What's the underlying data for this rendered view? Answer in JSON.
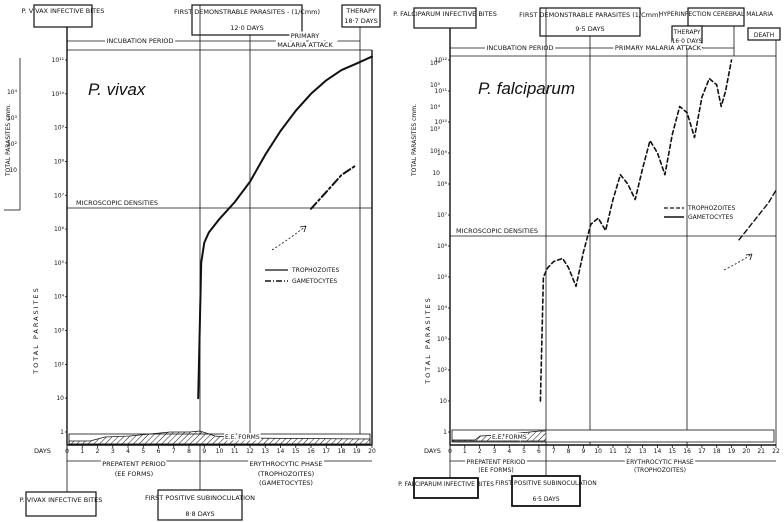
{
  "chart_data": [
    {
      "type": "line",
      "title": "P. vivax",
      "xlabel": "DAYS",
      "ylabel": "TOTAL PARASITES",
      "ylabel_cmm": "TOTAL PARASITES cmm.",
      "xlim": [
        0,
        20
      ],
      "x_ticks": [
        "0",
        "1",
        "2",
        "3",
        "4",
        "5",
        "6",
        "7",
        "8",
        "9",
        "10",
        "11",
        "12",
        "13",
        "14",
        "15",
        "16",
        "17",
        "18",
        "19",
        "20"
      ],
      "y_ticks_left": [
        "1",
        "10",
        "10²",
        "10³",
        "10⁴",
        "10⁵",
        "10⁶",
        "10⁷",
        "10⁸",
        "10⁹",
        "10¹⁰",
        "10¹¹"
      ],
      "y_ticks_cmm": [
        "10",
        "10²",
        "10³",
        "10⁴"
      ],
      "series": [
        {
          "name": "TROPHOZOITES",
          "style": "solid",
          "points": [
            [
              8.6,
              1.0
            ],
            [
              8.8,
              5.0
            ],
            [
              9.0,
              5.6
            ],
            [
              9.3,
              5.9
            ],
            [
              10,
              6.3
            ],
            [
              11,
              6.8
            ],
            [
              12,
              7.4
            ],
            [
              13,
              8.2
            ],
            [
              14,
              8.9
            ],
            [
              15,
              9.5
            ],
            [
              16,
              10.0
            ],
            [
              17,
              10.4
            ],
            [
              18,
              10.7
            ],
            [
              19,
              10.9
            ],
            [
              20,
              11.1
            ]
          ]
        },
        {
          "name": "GAMETOCYTES",
          "style": "dash-dot",
          "points": [
            [
              16,
              6.6
            ],
            [
              17,
              7.1
            ],
            [
              18,
              7.6
            ],
            [
              19,
              7.9
            ]
          ]
        }
      ],
      "annotations": {
        "microscopic_densities": "MICROSCOPIC DENSITIES",
        "ee_forms": "E.E. FORMS",
        "legend": "right-middle",
        "top_labels": {
          "bites": "P. VIVAX INFECTIVE BITES",
          "first_demo": "FIRST DEMONSTRABLE PARASITES - (1/Cmm)",
          "first_demo_days": "12·0 DAYS",
          "therapy": "THERAPY",
          "therapy_days": "18·7 DAYS",
          "incubation": "INCUBATION PERIOD",
          "primary": "PRIMARY",
          "malaria_attack": "MALARIA ATTACK"
        },
        "bottom_labels": {
          "prepatent": "PREPATENT PERIOD",
          "ee_forms_paren": "(EE FORMS)",
          "erythrocytic": "ERYTHROCYTIC PHASE",
          "troph_paren": "(TROPHOZOITES)",
          "gamet_paren": "(GAMETOCYTES)",
          "bites_box": "P. VIVAX INFECTIVE BITES",
          "subinoc": "FIRST POSITIVE SUBINOCULATION",
          "subinoc_days": "8·8 DAYS"
        }
      }
    },
    {
      "type": "line",
      "title": "P. falciparum",
      "xlabel": "DAYS",
      "ylabel": "TOTAL PARASITES",
      "ylabel_cmm": "TOTAL PARASITES cmm.",
      "xlim": [
        0,
        22
      ],
      "x_ticks": [
        "0",
        "1",
        "2",
        "3",
        "4",
        "5",
        "6",
        "7",
        "8",
        "9",
        "10",
        "11",
        "12",
        "13",
        "14",
        "15",
        "16",
        "17",
        "18",
        "19",
        "20",
        "21",
        "22"
      ],
      "y_ticks_left": [
        "1",
        "10",
        "10²",
        "10³",
        "10⁴",
        "10⁵",
        "10⁶",
        "10⁷",
        "10⁸",
        "10⁹",
        "10¹⁰",
        "10¹¹",
        "10¹²"
      ],
      "y_ticks_cmm": [
        "10",
        "10²",
        "10³",
        "10⁴",
        "10⁵",
        "10⁶"
      ],
      "series": [
        {
          "name": "TROPHOZOITES",
          "style": "solid",
          "points": [
            [
              6.1,
              1.0
            ],
            [
              6.3,
              5.0
            ],
            [
              6.6,
              5.3
            ],
            [
              7.0,
              5.5
            ],
            [
              7.6,
              5.6
            ],
            [
              8.0,
              5.3
            ],
            [
              8.5,
              4.7
            ],
            [
              9.0,
              5.8
            ],
            [
              9.5,
              6.7
            ],
            [
              10.0,
              6.9
            ],
            [
              10.5,
              6.5
            ],
            [
              11.0,
              7.5
            ],
            [
              11.5,
              8.3
            ],
            [
              12.0,
              8.0
            ],
            [
              12.5,
              7.5
            ],
            [
              13.0,
              8.5
            ],
            [
              13.5,
              9.4
            ],
            [
              14.0,
              9.0
            ],
            [
              14.5,
              8.3
            ],
            [
              15.0,
              9.6
            ],
            [
              15.5,
              10.5
            ],
            [
              16.0,
              10.3
            ],
            [
              16.5,
              9.5
            ],
            [
              17.0,
              10.8
            ],
            [
              17.5,
              11.4
            ],
            [
              18.0,
              11.2
            ],
            [
              18.3,
              10.5
            ],
            [
              18.6,
              11.0
            ],
            [
              19.0,
              12.0
            ]
          ]
        },
        {
          "name": "GAMETOCYTES",
          "style": "dashed",
          "points": [
            [
              19.5,
              6.2
            ],
            [
              20.5,
              6.8
            ],
            [
              21.5,
              7.4
            ],
            [
              22,
              7.8
            ]
          ]
        }
      ],
      "annotations": {
        "microscopic_densities": "MICROSCOPIC DENSITIES",
        "ee_forms": "E.E. FORMS",
        "legend": "right-middle",
        "top_labels": {
          "bites": "P. FALCIPARUM INFECTIVE BITES",
          "first_demo": "FIRST DEMONSTRABLE PARASITES (1/Cmm)",
          "first_demo_days": "9·5 DAYS",
          "hyper": "HYPERINFECTION CEREBRAL MALARIA",
          "therapy": "THERAPY",
          "therapy_days": "16·0 DAYS",
          "death": "DEATH",
          "incubation": "INCUBATION PERIOD",
          "primary": "PRIMARY MALARIA ATTACK"
        },
        "bottom_labels": {
          "prepatent": "PREPATENT PERIOD",
          "ee_forms_paren": "(EE FORMS)",
          "erythrocytic": "ERYTHROCYTIC PHASE",
          "troph_paren": "(TROPHOZOITES)",
          "bites_box": "P. FALCIPARUM INFECTIVE BITES",
          "subinoc": "FIRST POSITIVE SUBINOCULATION",
          "subinoc_days": "6·5 DAYS"
        }
      }
    }
  ]
}
